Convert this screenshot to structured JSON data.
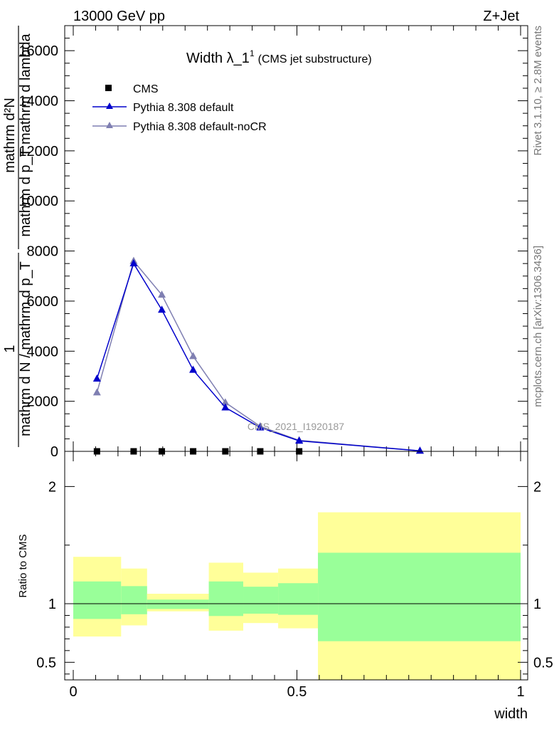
{
  "header": {
    "energy_label": "13000 GeV pp",
    "process_label": "Z+Jet",
    "rivet_label": "Rivet 3.1.10, ≥ 2.8M events",
    "mcplots_label": "mcplots.cern.ch [arXiv:1306.3436]",
    "watermark": "CMS_2021_I1920187"
  },
  "colors": {
    "cms": "#000000",
    "pythia_default": "#0000cc",
    "pythia_nocr": "#7f7fb2",
    "band_yellow": "#ffff99",
    "band_green": "#99ff99"
  },
  "chart_data": [
    {
      "type": "line",
      "title": "Width λ_1",
      "title_superscript": "1",
      "subtitle": "(CMS jet substructure)",
      "ylabel_numerator": "mathrm d²N",
      "ylabel_denominator": "mathrm d p_T mathrm d lambda",
      "ylabel_prefix_numerator": "1",
      "ylabel_prefix_denominator": "mathrm d N / mathrm d p_T",
      "ylim": [
        0,
        17000
      ],
      "yticks": [
        0,
        2000,
        4000,
        6000,
        8000,
        10000,
        12000,
        14000,
        16000
      ],
      "xlim": [
        0,
        1
      ],
      "series": [
        {
          "name": "CMS",
          "marker": "square",
          "x": [
            0.053,
            0.135,
            0.198,
            0.268,
            0.34,
            0.418,
            0.505
          ],
          "y": [
            0,
            0,
            0,
            0,
            0,
            0,
            0
          ]
        },
        {
          "name": "Pythia 8.308 default",
          "marker": "triangle",
          "x": [
            0.053,
            0.135,
            0.198,
            0.268,
            0.34,
            0.418,
            0.505,
            0.775
          ],
          "y": [
            2900,
            7500,
            5650,
            3250,
            1750,
            950,
            420,
            20
          ]
        },
        {
          "name": "Pythia 8.308 default-noCR",
          "marker": "triangle",
          "x": [
            0.053,
            0.135,
            0.198,
            0.268,
            0.34,
            0.418,
            0.505,
            0.775
          ],
          "y": [
            2350,
            7600,
            6250,
            3800,
            1950,
            1000,
            440,
            20
          ]
        }
      ]
    },
    {
      "type": "area",
      "ylabel": "Ratio to CMS",
      "xlabel": "width",
      "xlim": [
        0,
        1
      ],
      "xticks": [
        0,
        0.5,
        1
      ],
      "xtick_labels": [
        "0",
        "0.5",
        "1"
      ],
      "ylim": [
        0.35,
        2.3
      ],
      "yticks": [
        0.5,
        1,
        2
      ],
      "ytick_labels": [
        "0.5",
        "1",
        "2"
      ],
      "bins": [
        {
          "x": [
            0.0,
            0.107
          ],
          "yellow": [
            0.72,
            1.4
          ],
          "green": [
            0.87,
            1.19
          ]
        },
        {
          "x": [
            0.107,
            0.165
          ],
          "yellow": [
            0.815,
            1.3
          ],
          "green": [
            0.91,
            1.15
          ]
        },
        {
          "x": [
            0.165,
            0.303
          ],
          "yellow": [
            0.935,
            1.085
          ],
          "green": [
            0.955,
            1.035
          ]
        },
        {
          "x": [
            0.303,
            0.38
          ],
          "yellow": [
            0.77,
            1.35
          ],
          "green": [
            0.895,
            1.19
          ]
        },
        {
          "x": [
            0.38,
            0.458
          ],
          "yellow": [
            0.835,
            1.265
          ],
          "green": [
            0.915,
            1.145
          ]
        },
        {
          "x": [
            0.458,
            0.547
          ],
          "yellow": [
            0.79,
            1.3
          ],
          "green": [
            0.905,
            1.175
          ]
        },
        {
          "x": [
            0.547,
            1.0
          ],
          "yellow": [
            0.35,
            1.78
          ],
          "green": [
            0.68,
            1.435
          ]
        }
      ]
    }
  ]
}
